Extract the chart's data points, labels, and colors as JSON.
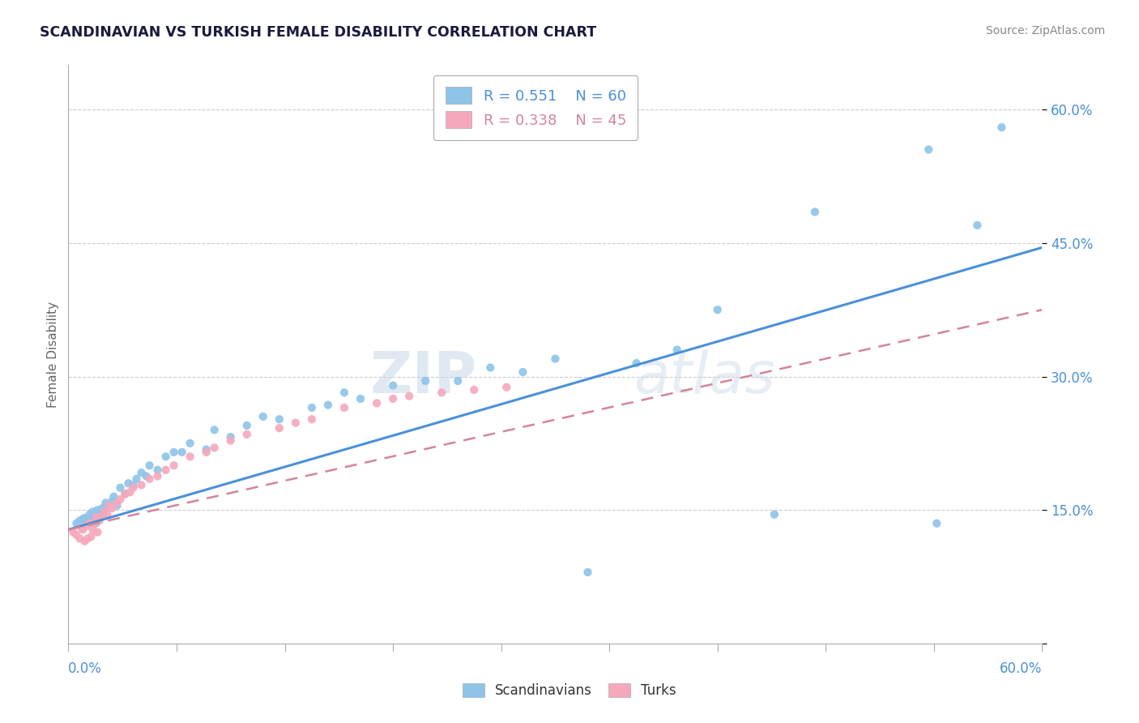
{
  "title": "SCANDINAVIAN VS TURKISH FEMALE DISABILITY CORRELATION CHART",
  "source": "Source: ZipAtlas.com",
  "ylabel": "Female Disability",
  "yticks": [
    0.0,
    0.15,
    0.3,
    0.45,
    0.6
  ],
  "ytick_labels": [
    "",
    "15.0%",
    "30.0%",
    "45.0%",
    "60.0%"
  ],
  "xmin": 0.0,
  "xmax": 0.6,
  "ymin": 0.0,
  "ymax": 0.65,
  "legend_r1": "R = 0.551",
  "legend_n1": "N = 60",
  "legend_r2": "R = 0.338",
  "legend_n2": "N = 45",
  "scand_color": "#8EC4E8",
  "turk_color": "#F5A8BC",
  "scand_line_color": "#4A90D9",
  "turk_line_color": "#D4849A",
  "bg_color": "#FFFFFF",
  "watermark_zip": "ZIP",
  "watermark_atlas": "atlas",
  "scand_line_x0": 0.0,
  "scand_line_y0": 0.128,
  "scand_line_x1": 0.6,
  "scand_line_y1": 0.445,
  "turk_line_x0": 0.0,
  "turk_line_y0": 0.128,
  "turk_line_x1": 0.6,
  "turk_line_y1": 0.375,
  "scand_x": [
    0.005,
    0.007,
    0.008,
    0.009,
    0.01,
    0.012,
    0.013,
    0.014,
    0.015,
    0.016,
    0.017,
    0.018,
    0.019,
    0.02,
    0.021,
    0.022,
    0.023,
    0.025,
    0.027,
    0.028,
    0.03,
    0.032,
    0.035,
    0.037,
    0.04,
    0.042,
    0.045,
    0.048,
    0.05,
    0.055,
    0.06,
    0.065,
    0.07,
    0.075,
    0.085,
    0.09,
    0.1,
    0.11,
    0.12,
    0.13,
    0.15,
    0.16,
    0.17,
    0.18,
    0.2,
    0.22,
    0.24,
    0.26,
    0.28,
    0.3,
    0.32,
    0.35,
    0.375,
    0.4,
    0.435,
    0.46,
    0.53,
    0.535,
    0.56,
    0.575
  ],
  "scand_y": [
    0.135,
    0.138,
    0.132,
    0.14,
    0.141,
    0.136,
    0.145,
    0.142,
    0.148,
    0.14,
    0.135,
    0.15,
    0.145,
    0.143,
    0.152,
    0.148,
    0.158,
    0.155,
    0.16,
    0.165,
    0.155,
    0.175,
    0.168,
    0.18,
    0.178,
    0.185,
    0.192,
    0.188,
    0.2,
    0.195,
    0.21,
    0.215,
    0.215,
    0.225,
    0.218,
    0.24,
    0.232,
    0.245,
    0.255,
    0.252,
    0.265,
    0.268,
    0.282,
    0.275,
    0.29,
    0.295,
    0.295,
    0.31,
    0.305,
    0.32,
    0.08,
    0.315,
    0.33,
    0.375,
    0.145,
    0.485,
    0.555,
    0.135,
    0.47,
    0.58
  ],
  "turk_x": [
    0.003,
    0.005,
    0.007,
    0.008,
    0.009,
    0.01,
    0.011,
    0.012,
    0.013,
    0.014,
    0.015,
    0.016,
    0.017,
    0.018,
    0.019,
    0.02,
    0.022,
    0.024,
    0.025,
    0.027,
    0.03,
    0.032,
    0.035,
    0.038,
    0.04,
    0.045,
    0.05,
    0.055,
    0.06,
    0.065,
    0.075,
    0.085,
    0.09,
    0.1,
    0.11,
    0.13,
    0.14,
    0.15,
    0.17,
    0.19,
    0.2,
    0.21,
    0.23,
    0.25,
    0.27
  ],
  "turk_y": [
    0.125,
    0.122,
    0.118,
    0.13,
    0.128,
    0.115,
    0.132,
    0.118,
    0.135,
    0.12,
    0.128,
    0.135,
    0.142,
    0.125,
    0.138,
    0.142,
    0.148,
    0.145,
    0.155,
    0.152,
    0.158,
    0.162,
    0.168,
    0.17,
    0.175,
    0.178,
    0.185,
    0.188,
    0.195,
    0.2,
    0.21,
    0.215,
    0.22,
    0.228,
    0.235,
    0.242,
    0.248,
    0.252,
    0.265,
    0.27,
    0.275,
    0.278,
    0.282,
    0.285,
    0.288
  ]
}
